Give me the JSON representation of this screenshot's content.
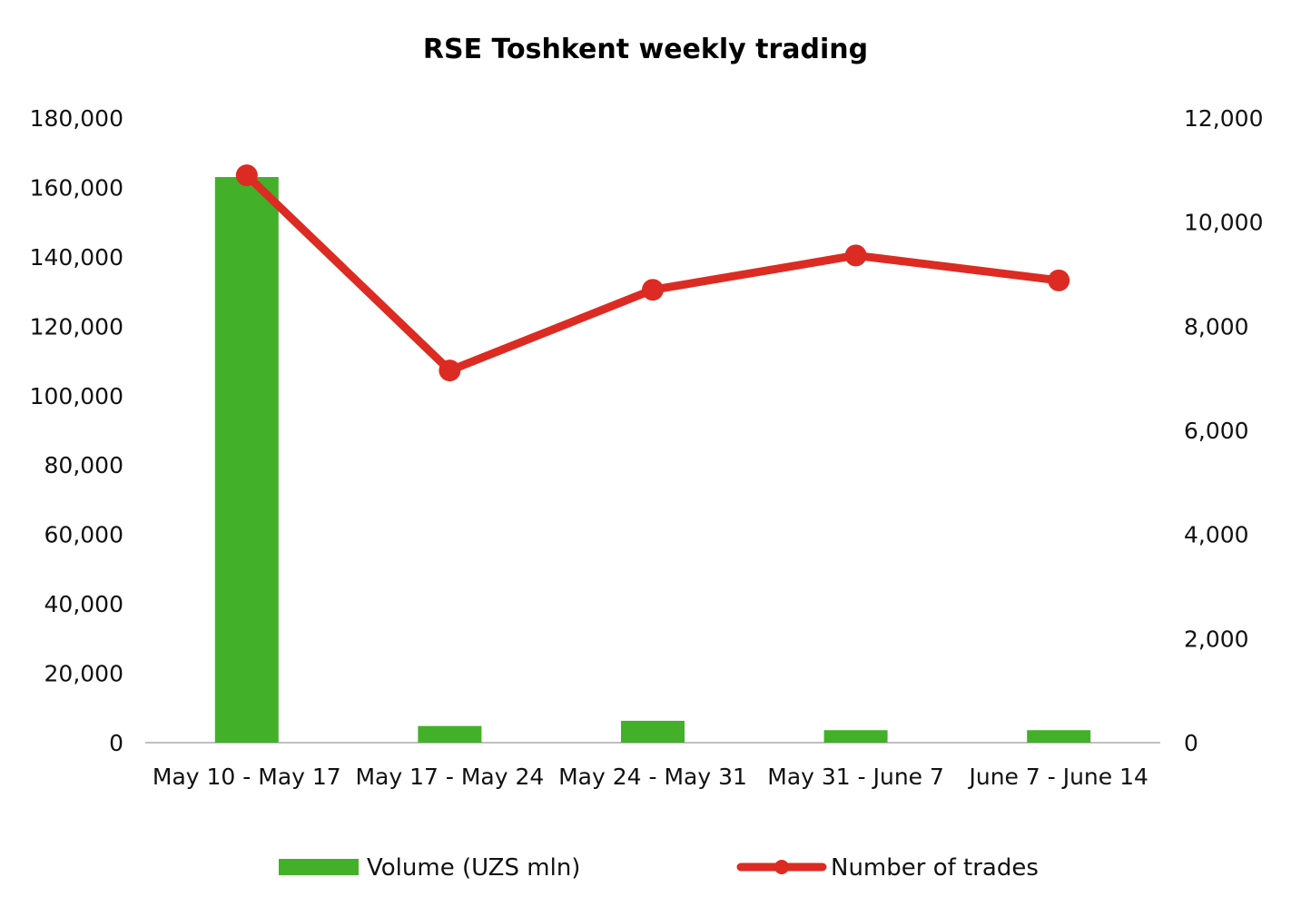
{
  "chart_data": {
    "type": "bar",
    "title": "RSE Toshkent weekly trading",
    "categories": [
      "May 10 - May 17",
      "May 17 - May 24",
      "May 24 - May 31",
      "May 31 - June 7",
      "June 7 - June 14"
    ],
    "series": [
      {
        "name": "Volume (UZS mln)",
        "type": "bar",
        "axis": "left",
        "color": "#43B02A",
        "values": [
          163000,
          4800,
          6300,
          3600,
          3600
        ]
      },
      {
        "name": "Number of trades",
        "type": "line",
        "axis": "right",
        "color": "#DC2B23",
        "values": [
          10900,
          7150,
          8700,
          9360,
          8880
        ]
      }
    ],
    "y_left": {
      "min": 0,
      "max": 180000,
      "step": 20000,
      "tick_labels": [
        "0",
        "20,000",
        "40,000",
        "60,000",
        "80,000",
        "100,000",
        "120,000",
        "140,000",
        "160,000",
        "180,000"
      ]
    },
    "y_right": {
      "min": 0,
      "max": 12000,
      "step": 2000,
      "tick_labels": [
        "0",
        "2,000",
        "4,000",
        "6,000",
        "8,000",
        "10,000",
        "12,000"
      ]
    },
    "grid": false,
    "legend_position": "bottom"
  }
}
